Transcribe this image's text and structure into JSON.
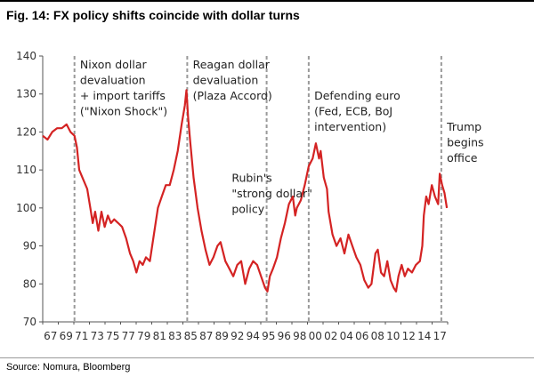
{
  "figure": {
    "title": "Fig. 14: FX policy shifts coincide with dollar turns",
    "source": "Source: Nomura, Bloomberg"
  },
  "colors": {
    "series": "#d42323",
    "axis": "#555555",
    "divider": "#9a9a9a"
  },
  "chart_data": {
    "type": "line",
    "title": "",
    "xlabel": "",
    "ylabel": "",
    "xlim": [
      1967,
      2018
    ],
    "ylim": [
      70,
      140
    ],
    "grid": false,
    "y_ticks": [
      70,
      80,
      90,
      100,
      110,
      120,
      130,
      140
    ],
    "x_tick_labels": [
      "67",
      "69",
      "71",
      "73",
      "75",
      "77",
      "79",
      "81",
      "83",
      "85",
      "87",
      "89",
      "92",
      "94",
      "95",
      "96",
      "98",
      "00",
      "02",
      "04",
      "06",
      "08",
      "10",
      "12",
      "14",
      "17"
    ],
    "series": [
      {
        "name": "",
        "points": [
          [
            1967.0,
            119
          ],
          [
            1967.6,
            118
          ],
          [
            1968.2,
            120
          ],
          [
            1968.8,
            121
          ],
          [
            1969.4,
            121
          ],
          [
            1970.0,
            122
          ],
          [
            1970.5,
            120
          ],
          [
            1971.0,
            119
          ],
          [
            1971.3,
            116
          ],
          [
            1971.6,
            110
          ],
          [
            1972.0,
            108
          ],
          [
            1972.6,
            105
          ],
          [
            1973.0,
            100
          ],
          [
            1973.3,
            96
          ],
          [
            1973.6,
            99
          ],
          [
            1974.0,
            94
          ],
          [
            1974.4,
            99
          ],
          [
            1974.8,
            95
          ],
          [
            1975.2,
            98
          ],
          [
            1975.6,
            96
          ],
          [
            1976.0,
            97
          ],
          [
            1976.5,
            96
          ],
          [
            1977.0,
            95
          ],
          [
            1977.5,
            92
          ],
          [
            1978.0,
            88
          ],
          [
            1978.4,
            86
          ],
          [
            1978.8,
            83
          ],
          [
            1979.2,
            86
          ],
          [
            1979.6,
            85
          ],
          [
            1980.0,
            87
          ],
          [
            1980.5,
            86
          ],
          [
            1981.0,
            93
          ],
          [
            1981.5,
            100
          ],
          [
            1982.0,
            103
          ],
          [
            1982.5,
            106
          ],
          [
            1983.0,
            106
          ],
          [
            1983.5,
            110
          ],
          [
            1984.0,
            115
          ],
          [
            1984.5,
            122
          ],
          [
            1984.9,
            127
          ],
          [
            1985.1,
            131
          ],
          [
            1985.3,
            124
          ],
          [
            1985.6,
            117
          ],
          [
            1986.0,
            108
          ],
          [
            1986.5,
            100
          ],
          [
            1987.0,
            94
          ],
          [
            1987.5,
            89
          ],
          [
            1988.0,
            85
          ],
          [
            1988.5,
            87
          ],
          [
            1989.0,
            90
          ],
          [
            1989.4,
            91
          ],
          [
            1990.0,
            86
          ],
          [
            1990.5,
            84
          ],
          [
            1991.0,
            82
          ],
          [
            1991.5,
            85
          ],
          [
            1992.0,
            86
          ],
          [
            1992.5,
            80
          ],
          [
            1993.0,
            84
          ],
          [
            1993.5,
            86
          ],
          [
            1994.0,
            85
          ],
          [
            1994.5,
            82
          ],
          [
            1995.0,
            79
          ],
          [
            1995.3,
            78
          ],
          [
            1995.6,
            82
          ],
          [
            1996.0,
            84
          ],
          [
            1996.5,
            87
          ],
          [
            1997.0,
            92
          ],
          [
            1997.5,
            96
          ],
          [
            1998.0,
            101
          ],
          [
            1998.5,
            103
          ],
          [
            1998.8,
            98
          ],
          [
            1999.0,
            100
          ],
          [
            1999.5,
            102
          ],
          [
            2000.0,
            106
          ],
          [
            2000.5,
            111
          ],
          [
            2001.0,
            113
          ],
          [
            2001.4,
            117
          ],
          [
            2001.8,
            113
          ],
          [
            2002.0,
            115
          ],
          [
            2002.4,
            108
          ],
          [
            2002.8,
            105
          ],
          [
            2003.0,
            99
          ],
          [
            2003.5,
            93
          ],
          [
            2004.0,
            90
          ],
          [
            2004.5,
            92
          ],
          [
            2005.0,
            88
          ],
          [
            2005.5,
            93
          ],
          [
            2006.0,
            90
          ],
          [
            2006.5,
            87
          ],
          [
            2007.0,
            85
          ],
          [
            2007.5,
            81
          ],
          [
            2008.0,
            79
          ],
          [
            2008.4,
            80
          ],
          [
            2008.9,
            88
          ],
          [
            2009.2,
            89
          ],
          [
            2009.6,
            83
          ],
          [
            2010.0,
            82
          ],
          [
            2010.4,
            86
          ],
          [
            2010.8,
            81
          ],
          [
            2011.2,
            79
          ],
          [
            2011.5,
            78
          ],
          [
            2011.8,
            82
          ],
          [
            2012.2,
            85
          ],
          [
            2012.6,
            82
          ],
          [
            2013.0,
            84
          ],
          [
            2013.5,
            83
          ],
          [
            2014.0,
            85
          ],
          [
            2014.5,
            86
          ],
          [
            2014.8,
            90
          ],
          [
            2015.0,
            98
          ],
          [
            2015.3,
            103
          ],
          [
            2015.6,
            101
          ],
          [
            2016.0,
            106
          ],
          [
            2016.4,
            103
          ],
          [
            2016.8,
            101
          ],
          [
            2017.0,
            109
          ],
          [
            2017.3,
            106
          ],
          [
            2017.6,
            104
          ],
          [
            2017.9,
            100
          ]
        ]
      }
    ],
    "event_lines": [
      1971.0,
      1985.2,
      1995.2,
      2000.5,
      2017.2
    ],
    "annotations": [
      {
        "text": "Nixon dollar",
        "x": 1971.7,
        "y": 136.7,
        "anchor": "start"
      },
      {
        "text": "devaluation",
        "x": 1971.7,
        "y": 132.6,
        "anchor": "start"
      },
      {
        "text": "+ import tariffs",
        "x": 1971.7,
        "y": 128.5,
        "anchor": "start"
      },
      {
        "text": "(\"Nixon Shock\")",
        "x": 1971.7,
        "y": 124.4,
        "anchor": "start"
      },
      {
        "text": "Reagan dollar",
        "x": 1985.9,
        "y": 136.7,
        "anchor": "start"
      },
      {
        "text": "devaluation",
        "x": 1985.9,
        "y": 132.6,
        "anchor": "start"
      },
      {
        "text": "(Plaza Accord)",
        "x": 1985.9,
        "y": 128.5,
        "anchor": "start"
      },
      {
        "text": "Rubin's",
        "x": 1990.8,
        "y": 106.9,
        "anchor": "start"
      },
      {
        "text": "\"strong dollar\"",
        "x": 1990.8,
        "y": 102.8,
        "anchor": "start"
      },
      {
        "text": "policy",
        "x": 1990.8,
        "y": 98.7,
        "anchor": "start"
      },
      {
        "text": "Defending euro",
        "x": 2001.2,
        "y": 128.5,
        "anchor": "start"
      },
      {
        "text": "(Fed, ECB, BoJ",
        "x": 2001.2,
        "y": 124.4,
        "anchor": "start"
      },
      {
        "text": "intervention)",
        "x": 2001.2,
        "y": 120.3,
        "anchor": "start"
      },
      {
        "text": "Trump",
        "x": 2017.9,
        "y": 120.3,
        "anchor": "start"
      },
      {
        "text": "begins",
        "x": 2017.9,
        "y": 116.2,
        "anchor": "start"
      },
      {
        "text": "office",
        "x": 2017.9,
        "y": 112.1,
        "anchor": "start"
      }
    ]
  }
}
